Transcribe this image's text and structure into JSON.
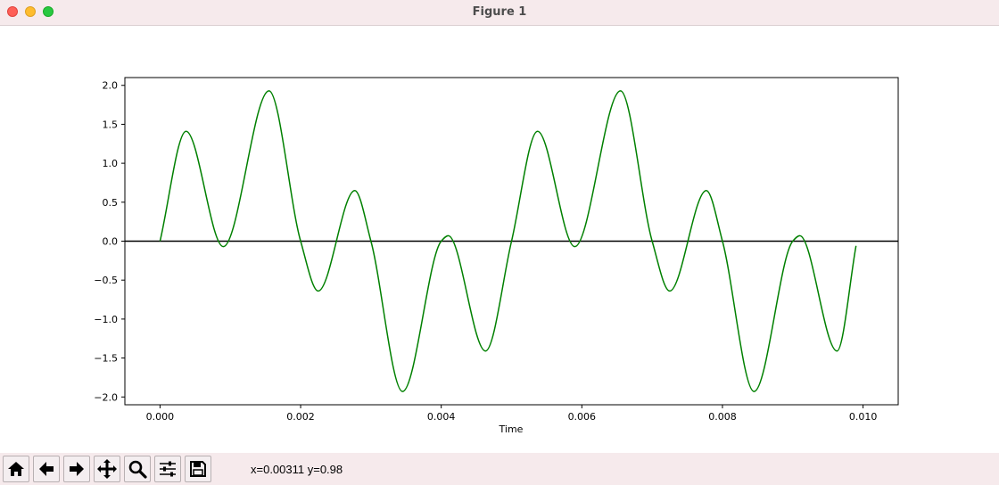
{
  "window": {
    "title": "Figure 1"
  },
  "toolbar": {
    "buttons": [
      {
        "icon": "home-icon"
      },
      {
        "icon": "back-arrow-icon"
      },
      {
        "icon": "forward-arrow-icon"
      },
      {
        "icon": "pan-icon"
      },
      {
        "icon": "zoom-icon"
      },
      {
        "icon": "configure-subplots-icon"
      },
      {
        "icon": "save-icon"
      }
    ],
    "coords_text": "x=0.00311 y=0.98"
  },
  "chart_data": {
    "type": "line",
    "xlabel": "Time",
    "ylabel": "",
    "title": "",
    "xlim": [
      -0.0005,
      0.0105
    ],
    "ylim": [
      -2.1,
      2.1
    ],
    "x_ticks": [
      "0.000",
      "0.002",
      "0.004",
      "0.006",
      "0.008",
      "0.010"
    ],
    "y_ticks": [
      "2.0",
      "1.5",
      "1.0",
      "0.5",
      "0.0",
      "−0.5",
      "−1.0",
      "−1.5",
      "−2.0"
    ],
    "reference_line_y": 0,
    "series": [
      {
        "color": "#008000",
        "x": [
          0.0,
          0.00037,
          0.0009,
          0.00155,
          0.002,
          0.00225,
          0.00277,
          0.003,
          0.00345,
          0.004,
          0.0041,
          0.00463,
          0.005,
          0.00537,
          0.0059,
          0.00655,
          0.007,
          0.00725,
          0.00777,
          0.008,
          0.00845,
          0.009,
          0.0091,
          0.00963,
          0.0099
        ],
        "y": [
          0.0,
          1.41,
          -0.07,
          1.93,
          0.0,
          -0.64,
          0.65,
          0.0,
          -1.93,
          0.0,
          0.07,
          -1.41,
          0.0,
          1.41,
          -0.07,
          1.93,
          0.0,
          -0.64,
          0.65,
          0.0,
          -1.93,
          0.0,
          0.07,
          -1.41,
          -0.06
        ]
      }
    ]
  }
}
